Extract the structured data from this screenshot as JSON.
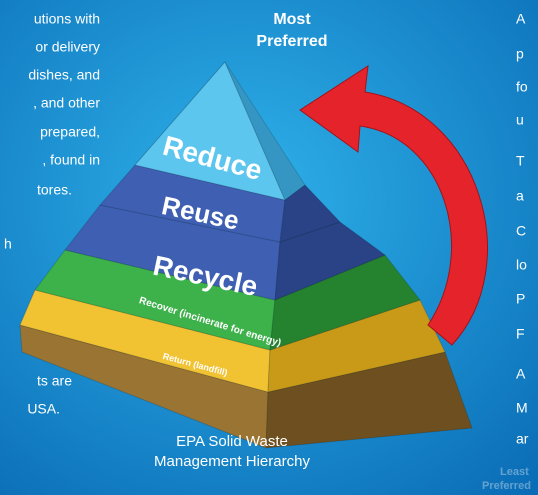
{
  "left_text": [
    "utions with",
    "or delivery",
    "dishes, and",
    ", and other",
    "prepared,",
    ", found in",
    "tores.",
    "h",
    "ts are",
    "USA."
  ],
  "right_text": [
    "A",
    "p",
    "fo",
    "u",
    "T",
    "a",
    "C",
    "lo",
    "P",
    "F",
    "A",
    "M",
    "ar"
  ],
  "top_label": [
    "Most",
    "Preferred"
  ],
  "pyramid": {
    "levels": [
      "Reduce",
      "Reuse",
      "Recycle",
      "Recover (incinerate for energy)",
      "Return (landfill)"
    ]
  },
  "caption": [
    "EPA Solid Waste",
    "Management Hierarchy"
  ],
  "bottom_label": [
    "Least",
    "Preferred"
  ]
}
